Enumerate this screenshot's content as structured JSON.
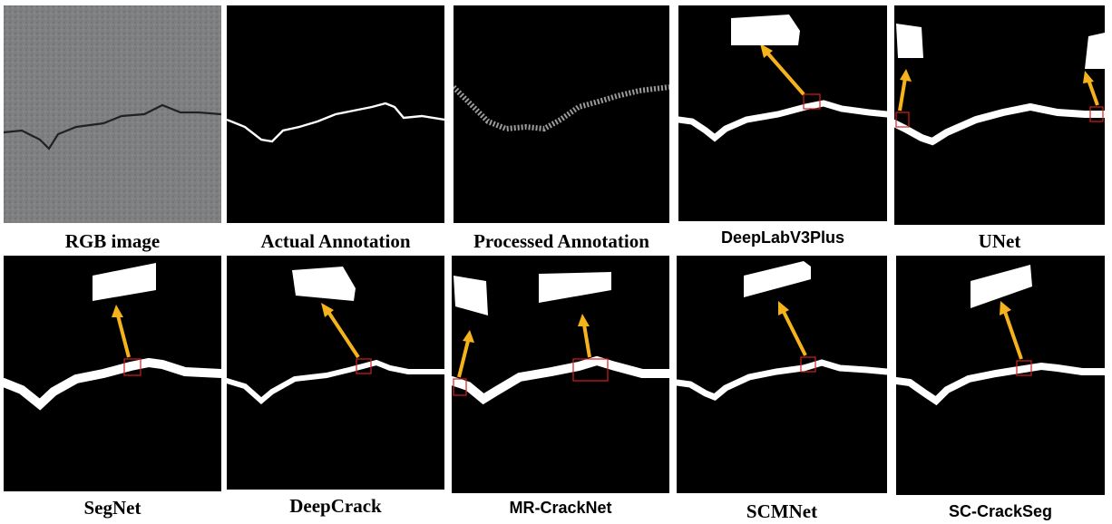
{
  "figure": {
    "captions": {
      "rgb": "RGB image",
      "actual": "Actual Annotation",
      "processed": "Processed Annotation",
      "deeplab": "DeepLabV3Plus",
      "unet": "UNet",
      "segnet": "SegNet",
      "deepcrack": "DeepCrack",
      "mrcracknet": "MR-CrackNet",
      "scmnet": "SCMNet",
      "sccrackseg": "SC-CrackSeg"
    },
    "colors": {
      "background": "#000000",
      "crack": "#ffffff",
      "arrow": "#f5b31b",
      "highlight_box": "#d32020",
      "pavement": "#7d7f80"
    }
  }
}
